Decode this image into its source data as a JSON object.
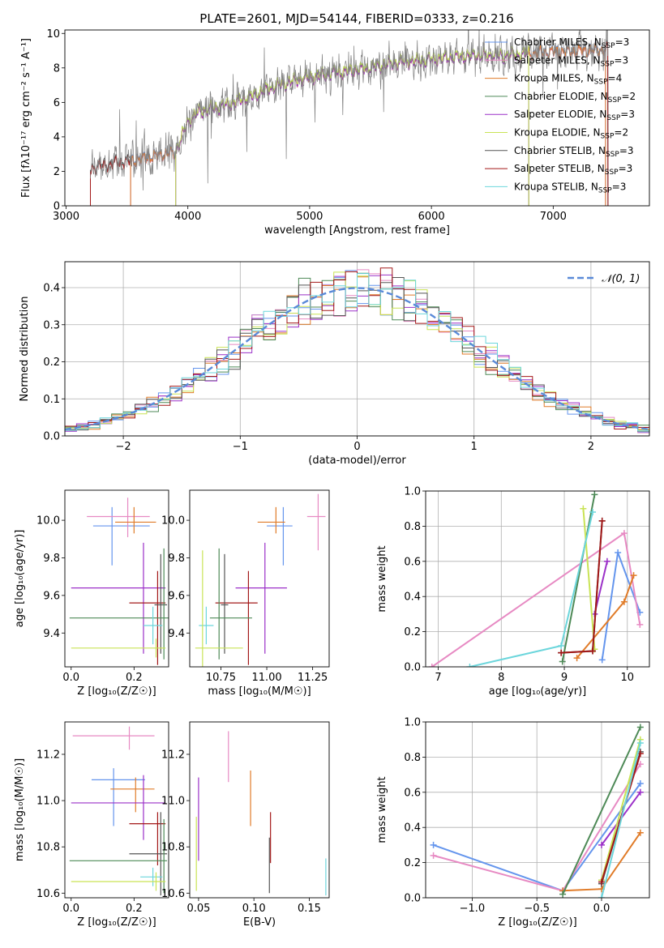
{
  "title": "PLATE=2601, MJD=54144, FIBERID=0333, z=0.216",
  "colors": {
    "chabrier_miles": "#6495ed",
    "salpeter_miles": "#e78ac3",
    "kroupa_miles": "#e07b28",
    "chabrier_elodie": "#4e8a57",
    "salpeter_elodie": "#9b30c8",
    "kroupa_elodie": "#c9e355",
    "chabrier_stelib": "#555555",
    "salpeter_stelib": "#a31818",
    "kroupa_stelib": "#6cd6dc",
    "data_spectrum": "#808080",
    "normal_curve": "#5a8ad8"
  },
  "chart_data": [
    {
      "id": "spectrum",
      "type": "line",
      "xlabel": "wavelength [Angstrom, rest frame]",
      "ylabel": "Flux [fλ10⁻¹⁷ erg cm⁻² s⁻¹ A⁻¹]",
      "xlim": [
        2990,
        7790
      ],
      "ylim": [
        0,
        10.2
      ],
      "xticks": [
        "3000",
        "4000",
        "5000",
        "6000",
        "7000"
      ],
      "yticks": [
        "0",
        "2",
        "4",
        "6",
        "8",
        "10"
      ],
      "legend_position": "right",
      "legend": [
        {
          "label": "Chabrier MILES, N",
          "sub": "SSP",
          "suffix": "=3",
          "color": "#6495ed"
        },
        {
          "label": "Salpeter MILES, N",
          "sub": "SSP",
          "suffix": "=3",
          "color": "#e78ac3"
        },
        {
          "label": "Kroupa MILES, N",
          "sub": "SSP",
          "suffix": "=4",
          "color": "#e07b28"
        },
        {
          "label": "Chabrier ELODIE, N",
          "sub": "SSP",
          "suffix": "=2",
          "color": "#4e8a57"
        },
        {
          "label": "Salpeter ELODIE, N",
          "sub": "SSP",
          "suffix": "=3",
          "color": "#9b30c8"
        },
        {
          "label": "Kroupa ELODIE, N",
          "sub": "SSP",
          "suffix": "=2",
          "color": "#c9e355"
        },
        {
          "label": "Chabrier STELIB, N",
          "sub": "SSP",
          "suffix": "=3",
          "color": "#555555"
        },
        {
          "label": "Salpeter STELIB, N",
          "sub": "SSP",
          "suffix": "=3",
          "color": "#a31818"
        },
        {
          "label": "Kroupa STELIB, N",
          "sub": "SSP",
          "suffix": "=3",
          "color": "#6cd6dc"
        }
      ],
      "continuum": [
        [
          3200,
          2.2
        ],
        [
          3400,
          2.5
        ],
        [
          3600,
          2.7
        ],
        [
          3800,
          3.0
        ],
        [
          3900,
          3.1
        ],
        [
          4000,
          4.9
        ],
        [
          4100,
          5.5
        ],
        [
          4300,
          5.8
        ],
        [
          4500,
          6.3
        ],
        [
          4700,
          6.9
        ],
        [
          4900,
          7.3
        ],
        [
          5100,
          7.6
        ],
        [
          5300,
          7.8
        ],
        [
          5500,
          8.0
        ],
        [
          5700,
          8.3
        ],
        [
          6000,
          8.5
        ],
        [
          6300,
          8.7
        ],
        [
          6600,
          8.7
        ],
        [
          6900,
          8.9
        ],
        [
          7200,
          9.0
        ],
        [
          7450,
          9.1
        ]
      ],
      "model_ranges": {
        "stelib": [
          3200,
          7450
        ],
        "miles": [
          3530,
          7430
        ],
        "elodie": [
          3900,
          6800
        ]
      }
    },
    {
      "id": "residuals",
      "type": "bar",
      "xlabel": "(data-model)/error",
      "ylabel": "Normed distribution",
      "xlim": [
        -2.5,
        2.5
      ],
      "ylim": [
        0,
        0.47
      ],
      "xticks": [
        "−2",
        "−1",
        "0",
        "1",
        "2"
      ],
      "yticks": [
        "0.0",
        "0.1",
        "0.2",
        "0.3",
        "0.4"
      ],
      "grid": true,
      "legend_label": "𝒩(0, 1)",
      "bin_width": 0.1,
      "series_colors": [
        "#6495ed",
        "#e78ac3",
        "#e07b28",
        "#4e8a57",
        "#9b30c8",
        "#c9e355",
        "#555555",
        "#a31818",
        "#6cd6dc"
      ]
    },
    {
      "id": "age_vs_Z",
      "type": "scatter",
      "xlabel": "Z [log₁₀(Z/Z☉)]",
      "ylabel": "age  [log₁₀(age/yr)]",
      "xlim": [
        -0.02,
        0.31
      ],
      "ylim": [
        9.22,
        10.16
      ],
      "xticks": [
        "0.0",
        "0.2"
      ],
      "yticks": [
        "9.4",
        "9.6",
        "9.8",
        "10.0"
      ],
      "points": [
        {
          "color": "#6495ed",
          "x": 0.13,
          "y": 9.97,
          "xerr": [
            0.06,
            0.12
          ],
          "yerr": [
            0.21,
            0.1
          ]
        },
        {
          "color": "#e78ac3",
          "x": 0.18,
          "y": 10.02,
          "xerr": [
            0.13,
            0.07
          ],
          "yerr": [
            0.11,
            0.1
          ]
        },
        {
          "color": "#e07b28",
          "x": 0.2,
          "y": 9.99,
          "xerr": [
            0.06,
            0.07
          ],
          "yerr": [
            0.06,
            0.08
          ]
        },
        {
          "color": "#9b30c8",
          "x": 0.23,
          "y": 9.64,
          "xerr": [
            0.23,
            0.07
          ],
          "yerr": [
            0.35,
            0.24
          ]
        },
        {
          "color": "#a31818",
          "x": 0.275,
          "y": 9.56,
          "xerr": [
            0.09,
            0.025
          ],
          "yerr": [
            0.33,
            0.17
          ]
        },
        {
          "color": "#555555",
          "x": 0.285,
          "y": 9.55,
          "xerr": [
            0.02,
            0.02
          ],
          "yerr": [
            0.26,
            0.27
          ]
        },
        {
          "color": "#4e8a57",
          "x": 0.295,
          "y": 9.48,
          "xerr": [
            0.3,
            0.02
          ],
          "yerr": [
            0.22,
            0.37
          ]
        },
        {
          "color": "#6cd6dc",
          "x": 0.26,
          "y": 9.44,
          "xerr": [
            0.03,
            0.03
          ],
          "yerr": [
            0.1,
            0.1
          ]
        },
        {
          "color": "#c9e355",
          "x": 0.27,
          "y": 9.32,
          "xerr": [
            0.27,
            0.03
          ],
          "yerr": [
            0.05,
            0.05
          ]
        }
      ]
    },
    {
      "id": "age_vs_mass",
      "type": "scatter",
      "xlabel": "mass [log₁₀(M/M☉)]",
      "ylabel": "",
      "xlim": [
        10.58,
        11.34
      ],
      "ylim": [
        9.22,
        10.16
      ],
      "xticks": [
        "10.75",
        "11.00",
        "11.25"
      ],
      "yticks": [
        "9.4",
        "9.6",
        "9.8",
        "10.0"
      ],
      "points": [
        {
          "color": "#6495ed",
          "x": 11.09,
          "y": 9.97,
          "xerr": [
            0.09,
            0.05
          ],
          "yerr": [
            0.21,
            0.1
          ]
        },
        {
          "color": "#e78ac3",
          "x": 11.28,
          "y": 10.02,
          "xerr": [
            0.06,
            0.04
          ],
          "yerr": [
            0.18,
            0.12
          ]
        },
        {
          "color": "#e07b28",
          "x": 11.05,
          "y": 9.99,
          "xerr": [
            0.1,
            0.05
          ],
          "yerr": [
            0.06,
            0.08
          ]
        },
        {
          "color": "#9b30c8",
          "x": 10.99,
          "y": 9.64,
          "xerr": [
            0.16,
            0.12
          ],
          "yerr": [
            0.35,
            0.24
          ]
        },
        {
          "color": "#a31818",
          "x": 10.9,
          "y": 9.56,
          "xerr": [
            0.18,
            0.05
          ],
          "yerr": [
            0.33,
            0.17
          ]
        },
        {
          "color": "#555555",
          "x": 10.77,
          "y": 9.55,
          "xerr": [
            0.02,
            0.02
          ],
          "yerr": [
            0.26,
            0.27
          ]
        },
        {
          "color": "#4e8a57",
          "x": 10.74,
          "y": 9.48,
          "xerr": [
            0.05,
            0.18
          ],
          "yerr": [
            0.22,
            0.37
          ]
        },
        {
          "color": "#6cd6dc",
          "x": 10.67,
          "y": 9.44,
          "xerr": [
            0.04,
            0.04
          ],
          "yerr": [
            0.1,
            0.1
          ]
        },
        {
          "color": "#c9e355",
          "x": 10.65,
          "y": 9.32,
          "xerr": [
            0.04,
            0.22
          ],
          "yerr": [
            0.1,
            0.52
          ]
        }
      ]
    },
    {
      "id": "weight_vs_age",
      "type": "line",
      "xlabel": "age  [log₁₀(age/yr)]",
      "ylabel": "mass weight",
      "xlim": [
        6.8,
        10.35
      ],
      "ylim": [
        0,
        1.0
      ],
      "xticks": [
        "7",
        "8",
        "9",
        "10"
      ],
      "yticks": [
        "0.0",
        "0.2",
        "0.4",
        "0.6",
        "0.8",
        "1.0"
      ],
      "grid": true,
      "series": [
        {
          "color": "#6495ed",
          "x": [
            9.6,
            9.85,
            10.2
          ],
          "y": [
            0.04,
            0.65,
            0.31
          ]
        },
        {
          "color": "#e78ac3",
          "x": [
            6.9,
            9.95,
            10.2
          ],
          "y": [
            0.0,
            0.76,
            0.24
          ]
        },
        {
          "color": "#e07b28",
          "x": [
            9.2,
            9.95,
            10.1
          ],
          "y": [
            0.05,
            0.37,
            0.52
          ]
        },
        {
          "color": "#4e8a57",
          "x": [
            8.97,
            9.48
          ],
          "y": [
            0.03,
            0.98
          ]
        },
        {
          "color": "#9b30c8",
          "x": [
            9.48,
            9.68
          ],
          "y": [
            0.3,
            0.6
          ]
        },
        {
          "color": "#c9e355",
          "x": [
            9.3,
            9.48
          ],
          "y": [
            0.9,
            0.1
          ]
        },
        {
          "color": "#555555",
          "x": [
            8.95,
            9.45,
            9.6
          ],
          "y": [
            0.08,
            0.09,
            0.83
          ]
        },
        {
          "color": "#a31818",
          "x": [
            8.95,
            9.45,
            9.6
          ],
          "y": [
            0.08,
            0.09,
            0.83
          ]
        },
        {
          "color": "#6cd6dc",
          "x": [
            7.5,
            8.95,
            9.45
          ],
          "y": [
            0.0,
            0.12,
            0.88
          ]
        }
      ]
    },
    {
      "id": "mass_vs_Z",
      "type": "scatter",
      "xlabel": "Z [log₁₀(Z/Z☉)]",
      "ylabel": "mass [log₁₀(M/M☉)]",
      "xlim": [
        -0.02,
        0.31
      ],
      "ylim": [
        10.58,
        11.34
      ],
      "xticks": [
        "0.0",
        "0.2"
      ],
      "yticks": [
        "10.6",
        "10.8",
        "11.0",
        "11.2"
      ],
      "points": [
        {
          "color": "#e78ac3",
          "x": 0.185,
          "y": 11.28,
          "xerr": [
            0.18,
            0.08
          ],
          "yerr": [
            0.06,
            0.04
          ]
        },
        {
          "color": "#6495ed",
          "x": 0.135,
          "y": 11.09,
          "xerr": [
            0.07,
            0.1
          ],
          "yerr": [
            0.2,
            0.05
          ]
        },
        {
          "color": "#e07b28",
          "x": 0.205,
          "y": 11.05,
          "xerr": [
            0.08,
            0.06
          ],
          "yerr": [
            0.1,
            0.05
          ]
        },
        {
          "color": "#9b30c8",
          "x": 0.23,
          "y": 10.99,
          "xerr": [
            0.23,
            0.07
          ],
          "yerr": [
            0.16,
            0.12
          ]
        },
        {
          "color": "#a31818",
          "x": 0.275,
          "y": 10.9,
          "xerr": [
            0.09,
            0.025
          ],
          "yerr": [
            0.18,
            0.05
          ]
        },
        {
          "color": "#555555",
          "x": 0.285,
          "y": 10.77,
          "xerr": [
            0.1,
            0.02
          ],
          "yerr": [
            0.18,
            0.18
          ]
        },
        {
          "color": "#4e8a57",
          "x": 0.295,
          "y": 10.74,
          "xerr": [
            0.3,
            0.01
          ],
          "yerr": [
            0.14,
            0.18
          ]
        },
        {
          "color": "#6cd6dc",
          "x": 0.26,
          "y": 10.67,
          "xerr": [
            0.04,
            0.03
          ],
          "yerr": [
            0.04,
            0.04
          ]
        },
        {
          "color": "#c9e355",
          "x": 0.27,
          "y": 10.65,
          "xerr": [
            0.27,
            0.03
          ],
          "yerr": [
            0.04,
            0.04
          ]
        }
      ]
    },
    {
      "id": "mass_vs_ebv",
      "type": "scatter",
      "xlabel": "E(B-V)",
      "ylabel": "",
      "xlim": [
        0.042,
        0.168
      ],
      "ylim": [
        10.58,
        11.34
      ],
      "xticks": [
        "0.05",
        "0.10",
        "0.15"
      ],
      "yticks": [
        "10.6",
        "10.8",
        "11.0",
        "11.2"
      ],
      "points": [
        {
          "color": "#e78ac3",
          "x": 0.077,
          "y": 11.19,
          "xerr": [
            0,
            0
          ],
          "yerr": [
            0.11,
            0.11
          ]
        },
        {
          "color": "#e07b28",
          "x": 0.097,
          "y": 11.01,
          "xerr": [
            0,
            0
          ],
          "yerr": [
            0.12,
            0.12
          ]
        },
        {
          "color": "#9b30c8",
          "x": 0.05,
          "y": 10.92,
          "xerr": [
            0,
            0
          ],
          "yerr": [
            0.18,
            0.18
          ]
        },
        {
          "color": "#c9e355",
          "x": 0.048,
          "y": 10.77,
          "xerr": [
            0,
            0
          ],
          "yerr": [
            0.16,
            0.16
          ]
        },
        {
          "color": "#a31818",
          "x": 0.115,
          "y": 10.84,
          "xerr": [
            0,
            0
          ],
          "yerr": [
            0.11,
            0.11
          ]
        },
        {
          "color": "#555555",
          "x": 0.114,
          "y": 10.72,
          "xerr": [
            0,
            0
          ],
          "yerr": [
            0.12,
            0.12
          ]
        },
        {
          "color": "#6cd6dc",
          "x": 0.165,
          "y": 10.67,
          "xerr": [
            0,
            0
          ],
          "yerr": [
            0.08,
            0.08
          ]
        }
      ]
    },
    {
      "id": "weight_vs_Z",
      "type": "line",
      "xlabel": "Z [log₁₀(Z/Z☉)]",
      "ylabel": "mass weight",
      "xlim": [
        -1.36,
        0.37
      ],
      "ylim": [
        0,
        1.0
      ],
      "xticks": [
        "−1.0",
        "−0.5",
        "0.0"
      ],
      "yticks": [
        "0.0",
        "0.2",
        "0.4",
        "0.6",
        "0.8",
        "1.0"
      ],
      "grid": true,
      "series": [
        {
          "color": "#6495ed",
          "x": [
            -1.3,
            -0.3,
            0.3
          ],
          "y": [
            0.3,
            0.04,
            0.65
          ]
        },
        {
          "color": "#e78ac3",
          "x": [
            -1.3,
            -0.3,
            0.3
          ],
          "y": [
            0.24,
            0.04,
            0.76
          ]
        },
        {
          "color": "#e07b28",
          "x": [
            -0.3,
            0.0,
            0.3
          ],
          "y": [
            0.04,
            0.05,
            0.37
          ]
        },
        {
          "color": "#4e8a57",
          "x": [
            -0.3,
            0.3
          ],
          "y": [
            0.02,
            0.97
          ]
        },
        {
          "color": "#9b30c8",
          "x": [
            0.0,
            0.3
          ],
          "y": [
            0.3,
            0.6
          ]
        },
        {
          "color": "#c9e355",
          "x": [
            0.0,
            0.3
          ],
          "y": [
            0.1,
            0.9
          ]
        },
        {
          "color": "#555555",
          "x": [
            0.0,
            0.3
          ],
          "y": [
            0.08,
            0.83
          ]
        },
        {
          "color": "#a31818",
          "x": [
            0.0,
            0.3
          ],
          "y": [
            0.09,
            0.82
          ]
        },
        {
          "color": "#6cd6dc",
          "x": [
            0.0,
            0.3
          ],
          "y": [
            0.0,
            0.88
          ]
        }
      ]
    }
  ]
}
